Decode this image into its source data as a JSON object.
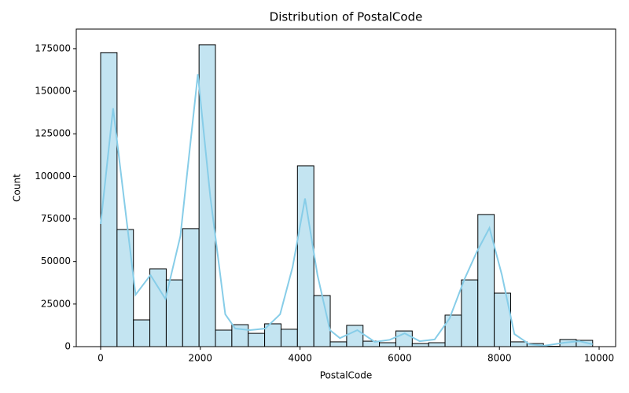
{
  "chart_data": {
    "type": "histogram",
    "title": "Distribution of PostalCode",
    "x_label": "PostalCode",
    "y_label": "Count",
    "bins": [
      0,
      329,
      658,
      987,
      1316,
      1645,
      1974,
      2303,
      2632,
      2961,
      3290,
      3619,
      3948,
      4277,
      4606,
      4935,
      5264,
      5593,
      5922,
      6251,
      6580,
      6909,
      7238,
      7567,
      7896,
      8225,
      8554,
      8883,
      9212,
      9541,
      9870
    ],
    "values": [
      172700,
      68800,
      15700,
      45700,
      39200,
      69300,
      177300,
      9700,
      12900,
      7800,
      13400,
      10200,
      106200,
      30000,
      2800,
      12500,
      3200,
      2300,
      9200,
      1800,
      2300,
      18500,
      39200,
      77600,
      31400,
      2800,
      1800,
      200,
      4200,
      3700
    ],
    "color": "#c3e4f1",
    "edgecolor": "#000000",
    "kde": {
      "color": "#87cde8",
      "x": [
        0,
        250,
        700,
        1000,
        1300,
        1600,
        1950,
        2200,
        2500,
        2700,
        3000,
        3300,
        3600,
        3850,
        4100,
        4350,
        4600,
        4800,
        5150,
        5500,
        5800,
        6100,
        6400,
        6700,
        7000,
        7300,
        7550,
        7800,
        8050,
        8300,
        8600,
        8900,
        9300,
        9600,
        9870
      ],
      "values": [
        72000,
        140000,
        30500,
        42000,
        28000,
        65000,
        160000,
        88000,
        19000,
        10600,
        9700,
        10600,
        19000,
        46600,
        87000,
        42000,
        9700,
        5000,
        9700,
        2800,
        4000,
        7800,
        3200,
        4200,
        16600,
        39700,
        55900,
        69700,
        42000,
        7400,
        1400,
        500,
        2300,
        3200,
        1400
      ]
    },
    "xlim": [
      -489,
      10331
    ],
    "ylim": [
      0,
      186500
    ],
    "xticks": [
      0,
      2000,
      4000,
      6000,
      8000,
      10000
    ],
    "yticks": [
      0,
      25000,
      50000,
      75000,
      100000,
      125000,
      150000,
      175000
    ]
  }
}
